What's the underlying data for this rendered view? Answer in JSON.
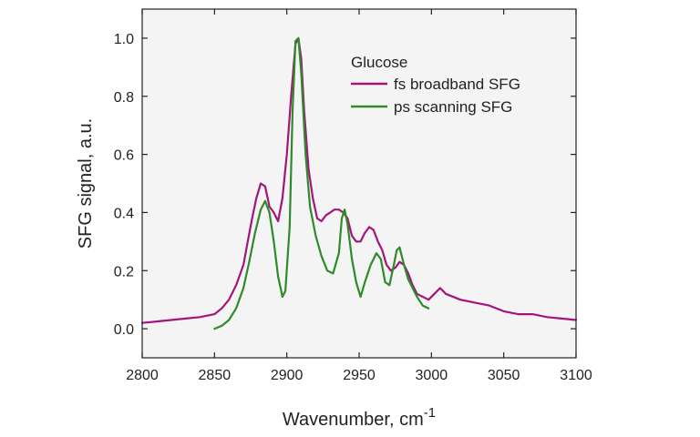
{
  "colors": {
    "plot_background": "#f4f4f4",
    "fs_series": "#a3157a",
    "ps_series": "#2e8b2a"
  },
  "chart_data": {
    "type": "line",
    "title": "",
    "xlabel": "Wavenumber, cm",
    "xlabel_superscript": "-1",
    "ylabel": "SFG signal, a.u.",
    "xlim": [
      2800,
      3100
    ],
    "ylim": [
      -0.1,
      1.1
    ],
    "xticks": [
      2800,
      2850,
      2900,
      2950,
      3000,
      3050,
      3100
    ],
    "xtick_labels": [
      "2800",
      "2850",
      "2900",
      "2950",
      "3000",
      "3050",
      "3100"
    ],
    "yticks": [
      0.0,
      0.2,
      0.4,
      0.6,
      0.8,
      1.0
    ],
    "ytick_labels": [
      "0.0",
      "0.2",
      "0.4",
      "0.6",
      "0.8",
      "1.0"
    ],
    "grid": false,
    "legend_title": "Glucose",
    "legend_position": "top-right",
    "series": [
      {
        "name": "fs broadband SFG",
        "color": "#a3157a",
        "x": [
          2800,
          2810,
          2820,
          2830,
          2840,
          2850,
          2855,
          2860,
          2865,
          2870,
          2873,
          2876,
          2879,
          2882,
          2885,
          2888,
          2891,
          2894,
          2897,
          2900,
          2903,
          2906,
          2908,
          2910,
          2912,
          2915,
          2918,
          2921,
          2924,
          2927,
          2930,
          2933,
          2936,
          2939,
          2942,
          2945,
          2948,
          2951,
          2954,
          2957,
          2960,
          2963,
          2966,
          2969,
          2972,
          2975,
          2978,
          2981,
          2984,
          2987,
          2990,
          2994,
          2998,
          3002,
          3006,
          3010,
          3020,
          3030,
          3040,
          3050,
          3060,
          3070,
          3080,
          3090,
          3100
        ],
        "y": [
          0.02,
          0.025,
          0.03,
          0.035,
          0.04,
          0.05,
          0.07,
          0.1,
          0.15,
          0.22,
          0.3,
          0.38,
          0.45,
          0.5,
          0.49,
          0.42,
          0.4,
          0.37,
          0.45,
          0.6,
          0.8,
          0.98,
          1.0,
          0.93,
          0.75,
          0.55,
          0.45,
          0.38,
          0.37,
          0.39,
          0.4,
          0.41,
          0.41,
          0.4,
          0.38,
          0.32,
          0.3,
          0.3,
          0.33,
          0.35,
          0.34,
          0.3,
          0.27,
          0.22,
          0.2,
          0.21,
          0.23,
          0.22,
          0.19,
          0.15,
          0.12,
          0.11,
          0.1,
          0.12,
          0.14,
          0.12,
          0.1,
          0.09,
          0.08,
          0.06,
          0.05,
          0.05,
          0.04,
          0.035,
          0.03
        ]
      },
      {
        "name": "ps scanning SFG",
        "color": "#2e8b2a",
        "x": [
          2850,
          2855,
          2860,
          2865,
          2870,
          2874,
          2878,
          2882,
          2885,
          2888,
          2891,
          2894,
          2897,
          2899,
          2902,
          2904,
          2906,
          2908,
          2910,
          2913,
          2916,
          2920,
          2924,
          2928,
          2932,
          2936,
          2938,
          2940,
          2942,
          2945,
          2948,
          2951,
          2954,
          2958,
          2962,
          2965,
          2968,
          2971,
          2974,
          2976,
          2978,
          2981,
          2984,
          2987,
          2990,
          2994,
          2998
        ],
        "y": [
          0.0,
          0.01,
          0.03,
          0.07,
          0.14,
          0.23,
          0.33,
          0.41,
          0.44,
          0.4,
          0.3,
          0.18,
          0.11,
          0.13,
          0.35,
          0.75,
          0.99,
          1.0,
          0.88,
          0.6,
          0.42,
          0.32,
          0.25,
          0.2,
          0.19,
          0.26,
          0.38,
          0.41,
          0.36,
          0.24,
          0.16,
          0.11,
          0.16,
          0.22,
          0.26,
          0.24,
          0.16,
          0.15,
          0.22,
          0.27,
          0.28,
          0.22,
          0.17,
          0.14,
          0.11,
          0.08,
          0.07
        ]
      }
    ]
  }
}
